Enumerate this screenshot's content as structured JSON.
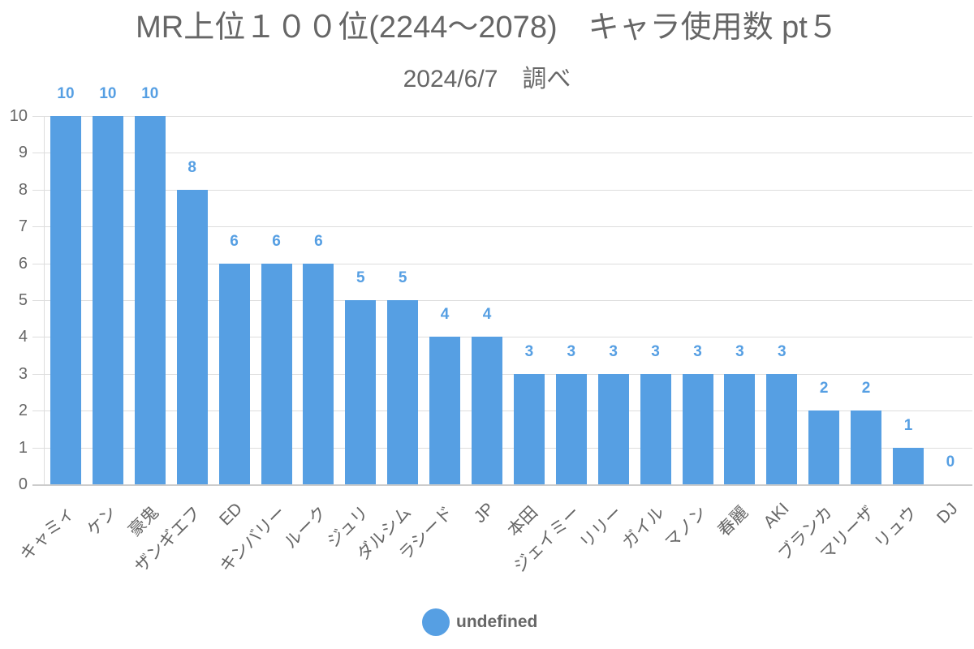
{
  "chart_data": {
    "type": "bar",
    "title": "MR上位１００位(2244～2078)　キャラ使用数 pt５",
    "subtitle": "2024/6/7　調べ",
    "categories": [
      "キャミィ",
      "ケン",
      "豪鬼",
      "ザンギエフ",
      "ED",
      "キンバリー",
      "ルーク",
      "ジュリ",
      "ダルシム",
      "ラシード",
      "JP",
      "本田",
      "ジェイミー",
      "リリー",
      "ガイル",
      "マノン",
      "春麗",
      "AKI",
      "ブランカ",
      "マリーザ",
      "リュウ",
      "DJ"
    ],
    "series": [
      {
        "name": "undefined",
        "values": [
          10,
          10,
          10,
          8,
          6,
          6,
          6,
          5,
          5,
          4,
          4,
          3,
          3,
          3,
          3,
          3,
          3,
          3,
          2,
          2,
          1,
          0
        ],
        "color": "#569fe3"
      }
    ],
    "xlabel": "",
    "ylabel": "",
    "ylim": [
      0,
      10
    ],
    "yticks": [
      "0",
      "1",
      "2",
      "3",
      "4",
      "5",
      "6",
      "7",
      "8",
      "9",
      "10"
    ],
    "grid": true,
    "legend_position": "bottom",
    "data_labels": true
  },
  "legend": {
    "label": "undefined"
  }
}
